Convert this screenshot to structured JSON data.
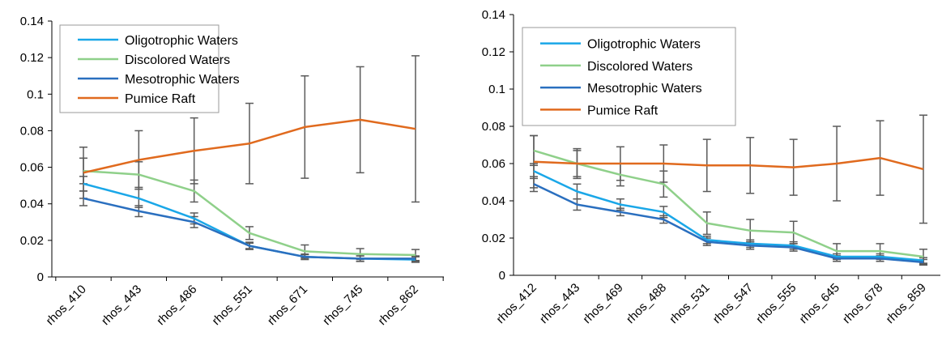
{
  "colors": {
    "Oligotrophic Waters": "#1aa7e8",
    "Discolored Waters": "#8fd08a",
    "Mesotrophic Waters": "#2a6fbf",
    "Pumice Raft": "#e06a1e",
    "errorbar": "#5a5a5a",
    "axis": "#000000"
  },
  "chart_data": [
    {
      "type": "line",
      "categories": [
        "rhos_410",
        "rhos_443",
        "rhos_486",
        "rhos_551",
        "rhos_671",
        "rhos_745",
        "rhos_862"
      ],
      "ylim": [
        0,
        0.14
      ],
      "yticks": [
        "0",
        "0.02",
        "0.04",
        "0.06",
        "0.08",
        "0.1",
        "0.12",
        "0.14"
      ],
      "ytick_values": [
        0,
        0.02,
        0.04,
        0.06,
        0.08,
        0.1,
        0.12,
        0.14
      ],
      "legend_position": "top-left",
      "grid": false,
      "series": [
        {
          "name": "Oligotrophic Waters",
          "values": [
            0.051,
            0.043,
            0.032,
            0.017,
            0.011,
            0.01,
            0.0095
          ],
          "errors": [
            0.004,
            0.005,
            0.003,
            0.0015,
            0.0012,
            0.0015,
            0.0015
          ]
        },
        {
          "name": "Discolored Waters",
          "values": [
            0.058,
            0.056,
            0.047,
            0.024,
            0.014,
            0.0125,
            0.012
          ],
          "errors": [
            0.007,
            0.007,
            0.006,
            0.0035,
            0.0035,
            0.003,
            0.003
          ]
        },
        {
          "name": "Mesotrophic Waters",
          "values": [
            0.043,
            0.036,
            0.03,
            0.017,
            0.011,
            0.01,
            0.01
          ],
          "errors": [
            0.004,
            0.003,
            0.003,
            0.002,
            0.0015,
            0.0015,
            0.0015
          ]
        },
        {
          "name": "Pumice Raft",
          "values": [
            0.057,
            0.064,
            0.069,
            0.073,
            0.082,
            0.086,
            0.081
          ],
          "errors": [
            0.014,
            0.016,
            0.018,
            0.022,
            0.028,
            0.029,
            0.04
          ]
        }
      ]
    },
    {
      "type": "line",
      "categories": [
        "rhos_412",
        "rhos_443",
        "rhos_469",
        "rhos_488",
        "rhos_531",
        "rhos_547",
        "rhos_555",
        "rhos_645",
        "rhos_678",
        "rhos_859"
      ],
      "ylim": [
        0,
        0.14
      ],
      "yticks": [
        "0",
        "0.02",
        "0.04",
        "0.06",
        "0.08",
        "0.1",
        "0.12",
        "0.14"
      ],
      "ytick_values": [
        0,
        0.02,
        0.04,
        0.06,
        0.08,
        0.1,
        0.12,
        0.14
      ],
      "legend_position": "top-left",
      "grid": false,
      "series": [
        {
          "name": "Oligotrophic Waters",
          "values": [
            0.056,
            0.045,
            0.038,
            0.034,
            0.019,
            0.017,
            0.016,
            0.01,
            0.01,
            0.008
          ],
          "errors": [
            0.004,
            0.004,
            0.003,
            0.003,
            0.002,
            0.002,
            0.002,
            0.0015,
            0.0015,
            0.0015
          ]
        },
        {
          "name": "Discolored Waters",
          "values": [
            0.067,
            0.06,
            0.054,
            0.049,
            0.028,
            0.024,
            0.023,
            0.013,
            0.013,
            0.01
          ],
          "errors": [
            0.008,
            0.007,
            0.006,
            0.007,
            0.006,
            0.006,
            0.006,
            0.004,
            0.004,
            0.004
          ]
        },
        {
          "name": "Mesotrophic Waters",
          "values": [
            0.049,
            0.038,
            0.034,
            0.03,
            0.018,
            0.016,
            0.015,
            0.009,
            0.009,
            0.007
          ],
          "errors": [
            0.004,
            0.003,
            0.002,
            0.002,
            0.002,
            0.002,
            0.002,
            0.0015,
            0.0015,
            0.0015
          ]
        },
        {
          "name": "Pumice Raft",
          "values": [
            0.061,
            0.06,
            0.06,
            0.06,
            0.059,
            0.059,
            0.058,
            0.06,
            0.063,
            0.057
          ],
          "errors": [
            0.014,
            0.008,
            0.009,
            0.01,
            0.014,
            0.015,
            0.015,
            0.02,
            0.02,
            0.029
          ]
        }
      ]
    }
  ]
}
